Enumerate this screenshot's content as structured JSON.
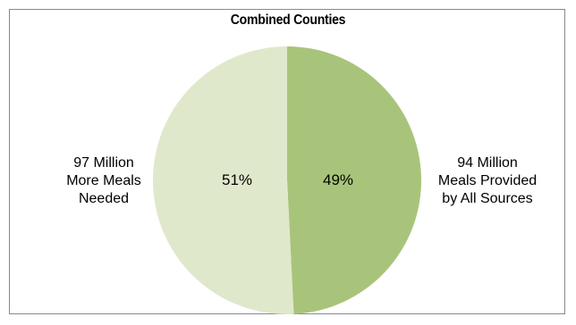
{
  "chart_data": {
    "type": "pie",
    "title": "Combined Counties",
    "slices": [
      {
        "label_lines": [
          "94 Million",
          "Meals Provided",
          "by All Sources"
        ],
        "value": 94,
        "percent_label": "49%",
        "color": "#a8c47a"
      },
      {
        "label_lines": [
          "97 Million",
          "More Meals",
          "Needed"
        ],
        "value": 97,
        "percent_label": "51%",
        "color": "#e0e8cc"
      }
    ],
    "start_angle_deg": 0,
    "direction": "clockwise",
    "legend": "none",
    "border_color": "#8a8a8a"
  }
}
